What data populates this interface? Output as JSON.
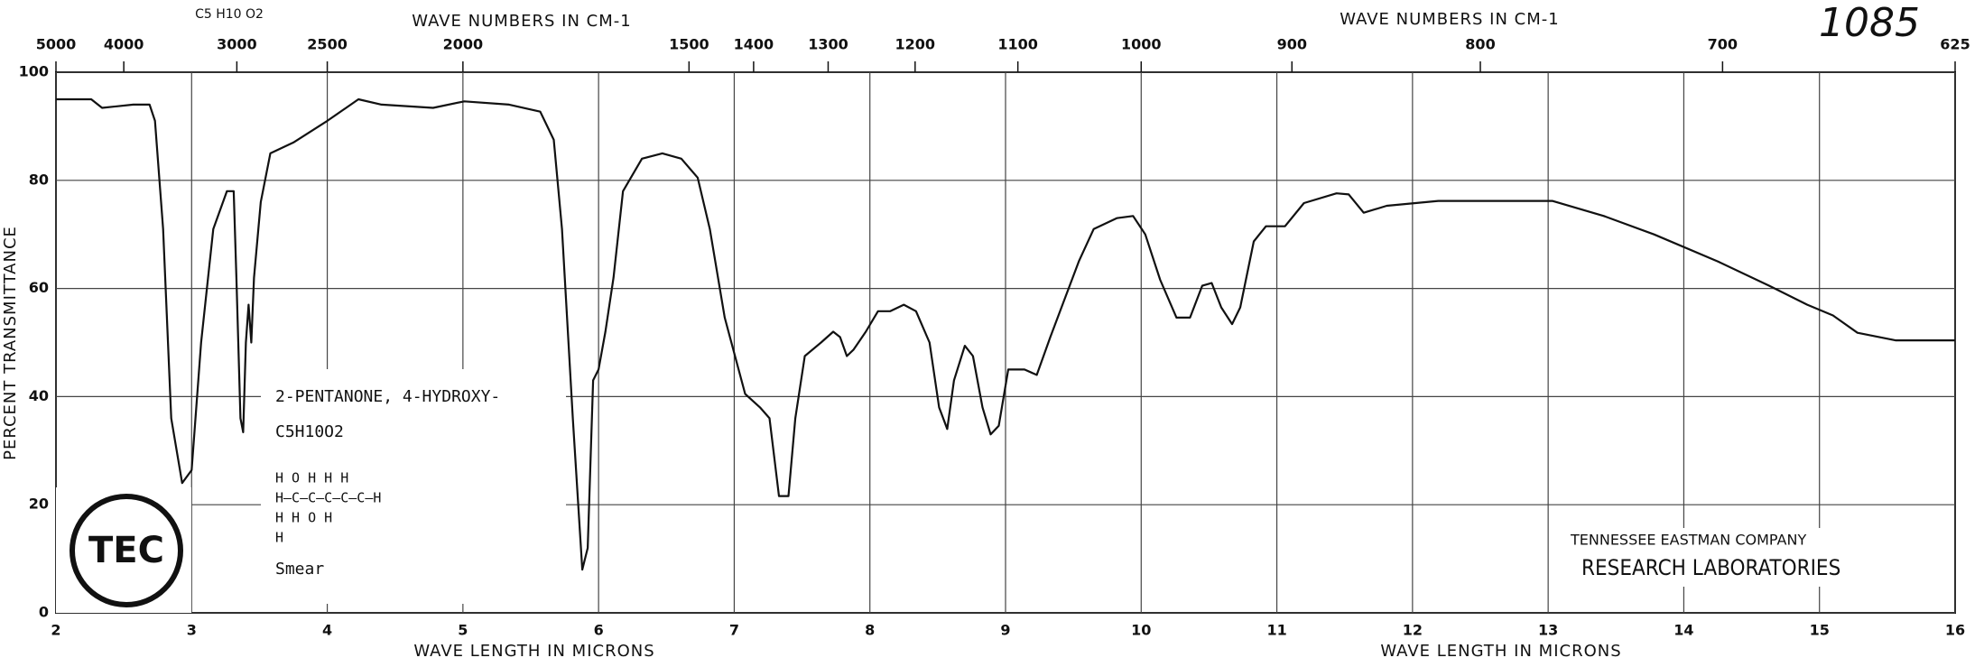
{
  "chart_data": {
    "type": "line",
    "catalog_number": "1085",
    "formula_header": "C5 H10 O2",
    "top_axis_label": "WAVE NUMBERS IN CM-1",
    "x_label": "WAVE LENGTH IN MICRONS",
    "y_label": "PERCENT TRANSMITTANCE",
    "compound_name": "2-PENTANONE, 4-HYDROXY-",
    "compound_formula": "C5H10O2",
    "structure_rows": [
      "H   O   H   H   H",
      "H—C—C—C—C—C—H",
      "H       H   O   H",
      "            H"
    ],
    "sample": "Smear",
    "logo_text": "TEC",
    "company": "TENNESSEE EASTMAN COMPANY",
    "lab": "RESEARCH LABORATORIES",
    "xlim": [
      2,
      16
    ],
    "xticks": [
      2,
      3,
      4,
      5,
      6,
      7,
      8,
      9,
      10,
      11,
      12,
      13,
      14,
      15,
      16
    ],
    "x2ticks": [
      5000,
      4000,
      3000,
      2500,
      2000,
      1500,
      1400,
      1300,
      1200,
      1100,
      1000,
      900,
      800,
      700,
      625
    ],
    "ylim": [
      0,
      100
    ],
    "yticks": [
      0,
      20,
      40,
      60,
      80,
      100
    ],
    "grid": true,
    "color": "#111111",
    "x": [
      2.0,
      2.26,
      2.34,
      2.57,
      2.69,
      2.73,
      2.79,
      2.85,
      2.93,
      3.0,
      3.07,
      3.16,
      3.26,
      3.31,
      3.33,
      3.36,
      3.38,
      3.4,
      3.42,
      3.44,
      3.46,
      3.51,
      3.58,
      3.75,
      4.0,
      4.23,
      4.4,
      4.78,
      5.01,
      5.34,
      5.57,
      5.67,
      5.73,
      5.81,
      5.88,
      5.92,
      5.96,
      6.0,
      6.05,
      6.11,
      6.18,
      6.32,
      6.47,
      6.61,
      6.73,
      6.82,
      6.93,
      7.08,
      7.19,
      7.26,
      7.33,
      7.4,
      7.45,
      7.52,
      7.64,
      7.73,
      7.78,
      7.83,
      7.88,
      7.97,
      8.06,
      8.15,
      8.25,
      8.34,
      8.44,
      8.51,
      8.57,
      8.62,
      8.7,
      8.76,
      8.83,
      8.89,
      8.95,
      9.02,
      9.14,
      9.23,
      9.33,
      9.42,
      9.54,
      9.65,
      9.82,
      9.94,
      10.03,
      10.14,
      10.26,
      10.36,
      10.45,
      10.52,
      10.59,
      10.67,
      10.73,
      10.83,
      10.92,
      11.06,
      11.2,
      11.44,
      11.53,
      11.64,
      11.81,
      12.19,
      13.03,
      13.41,
      13.78,
      14.25,
      14.63,
      14.91,
      15.1,
      15.28,
      15.56,
      16.0
    ],
    "values": [
      95,
      95,
      93.4,
      94,
      94,
      91,
      71,
      36,
      24,
      26.4,
      50,
      71,
      78,
      78,
      62,
      36,
      33.4,
      50,
      57,
      50,
      62,
      76,
      85,
      87,
      91,
      95,
      94,
      93.4,
      94.6,
      94,
      92.7,
      87.5,
      71,
      36,
      8,
      12,
      43,
      45,
      52,
      62,
      78,
      84,
      85,
      84,
      80.5,
      71,
      54.6,
      40.5,
      38,
      36,
      21.6,
      21.6,
      36,
      47.5,
      50,
      52,
      51,
      47.5,
      48.7,
      52,
      55.8,
      55.8,
      57,
      55.8,
      50,
      38,
      34,
      43,
      49.4,
      47.5,
      38,
      33,
      34.6,
      45,
      45,
      44,
      51,
      57,
      65,
      71,
      73,
      73.4,
      70,
      61.6,
      54.6,
      54.6,
      60.5,
      61,
      56.5,
      53.4,
      56.5,
      68.7,
      71.5,
      71.5,
      75.8,
      77.6,
      77.4,
      74,
      75.3,
      76.2,
      76.2,
      73.4,
      70,
      65,
      60.5,
      57,
      55,
      51.8,
      50.4,
      50.4
    ]
  }
}
